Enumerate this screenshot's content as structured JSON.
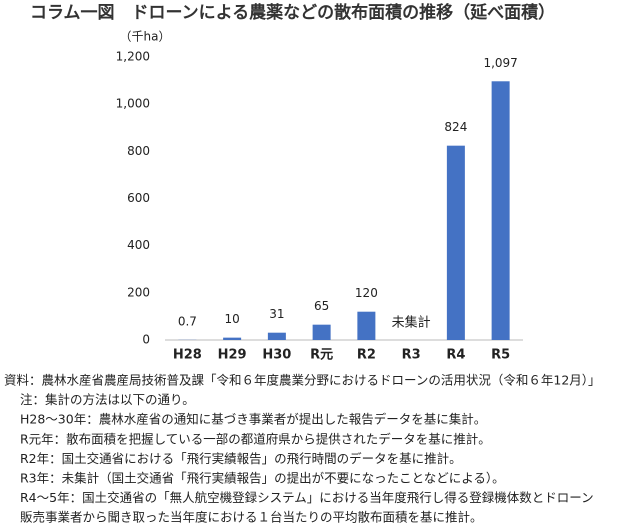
{
  "chart_data": {
    "type": "bar",
    "title": "コラム一図　ドローンによる農薬などの散布面積の推移（延べ面積）",
    "y_label": "（千ha）",
    "categories": [
      "H28",
      "H29",
      "H30",
      "R元",
      "R2",
      "R3",
      "R4",
      "R5"
    ],
    "values": [
      0.7,
      10,
      31,
      65,
      120,
      null,
      824,
      1097
    ],
    "value_labels": [
      "0.7",
      "10",
      "31",
      "65",
      "120",
      null,
      "824",
      "1,097"
    ],
    "annotations": [
      {
        "category": 5,
        "text": "未集計"
      }
    ],
    "color": "#4472c4",
    "ylim": [
      0,
      1200
    ],
    "yticks": [
      0,
      200,
      400,
      600,
      800,
      {
        "value": 1000,
        "label": "1,000"
      },
      {
        "value": 1200,
        "label": "1,200"
      }
    ],
    "grid": false
  },
  "notes": [
    "資料：農林水産省農産局技術普及課「令和６年度農業分野におけるドローンの活用状況（令和６年12月）」",
    "注：集計の方法は以下の通り。",
    "H28～30年：農林水産省の通知に基づき事業者が提出した報告データを基に集計。",
    "R元年：散布面積を把握している一部の都道府県から提供されたデータを基に推計。",
    "R2年：国土交通省における「飛行実績報告」の飛行時間のデータを基に推計。",
    "R3年：未集計（国土交通省「飛行実績報告」の提出が不要になったことなどによる）。",
    "R4～5年：国土交通省の「無人航空機登録システム」における当年度飛行し得る登録機体数とドローン",
    "販売事業者から聞き取った当年度における１台当たりの平均散布面積を基に推計。"
  ]
}
